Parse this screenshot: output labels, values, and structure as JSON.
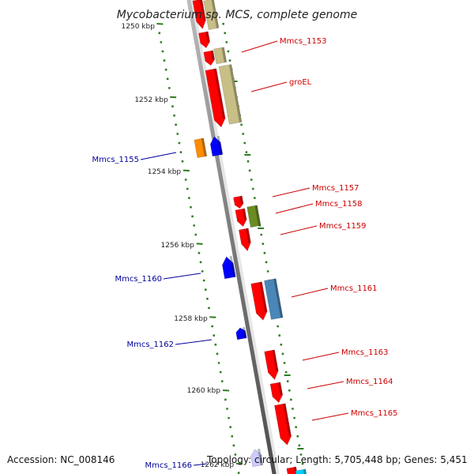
{
  "title": "Mycobacterium sp. MCS, complete genome",
  "footer": {
    "accession": "Accession: NC_008146",
    "topology": "Topology: circular; Length: 5,705,448 bp; Genes: 5,451"
  },
  "colors": {
    "forward": "#ff0000",
    "reverse": "#0000ff",
    "label_forward": "#cc0000",
    "label_reverse": "#000099",
    "backbone": "#8c8c8c",
    "ticks": "#2e7d1e",
    "rna_tan": "#c8bf86",
    "olive": "#6b8c23",
    "steel": "#4a86b8",
    "orange": "#ff8c00",
    "cyan": "#00ccff",
    "lavender": "#ccccff"
  },
  "scale": {
    "unit": "kbp",
    "labels": [
      "1250 kbp",
      "1252 kbp",
      "1254 kbp",
      "1256 kbp",
      "1258 kbp",
      "1260 kbp",
      "1262 kbp"
    ]
  },
  "genes": [
    {
      "label": "Mmcs_1153",
      "strand": "forward"
    },
    {
      "label": "groEL",
      "strand": "forward"
    },
    {
      "label": "Mmcs_1155",
      "strand": "reverse"
    },
    {
      "label": "Mmcs_1157",
      "strand": "forward"
    },
    {
      "label": "Mmcs_1158",
      "strand": "forward"
    },
    {
      "label": "Mmcs_1159",
      "strand": "forward"
    },
    {
      "label": "Mmcs_1160",
      "strand": "reverse"
    },
    {
      "label": "Mmcs_1161",
      "strand": "forward"
    },
    {
      "label": "Mmcs_1162",
      "strand": "reverse"
    },
    {
      "label": "Mmcs_1163",
      "strand": "forward"
    },
    {
      "label": "Mmcs_1164",
      "strand": "forward"
    },
    {
      "label": "Mmcs_1165",
      "strand": "forward"
    },
    {
      "label": "Mmcs_1166",
      "strand": "reverse"
    }
  ]
}
